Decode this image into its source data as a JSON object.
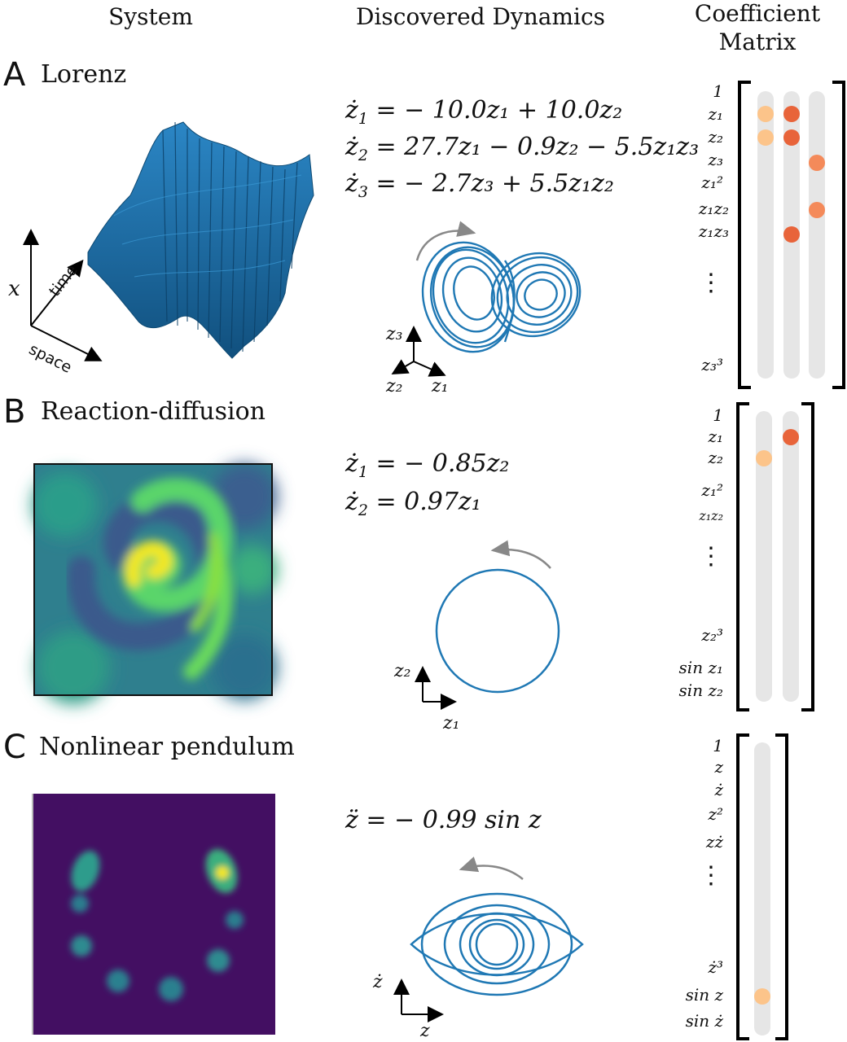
{
  "columns": {
    "system": "System",
    "dynamics": "Discovered Dynamics",
    "coef_line1": "Coefficient",
    "coef_line2": "Matrix"
  },
  "panels": {
    "A": {
      "letter": "A",
      "name": "Lorenz",
      "surface_axes": {
        "x": "x",
        "time": "time",
        "space": "space"
      },
      "equations": [
        {
          "lhs": "ż",
          "lsub": "1",
          "rhs": "= − 10.0z₁ + 10.0z₂"
        },
        {
          "lhs": "ż",
          "lsub": "2",
          "rhs": "= 27.7z₁ − 0.9z₂ − 5.5z₁z₃"
        },
        {
          "lhs": "ż",
          "lsub": "3",
          "rhs": "= − 2.7z₃ + 5.5z₁z₂"
        }
      ],
      "phase_axes": [
        "z₃",
        "z₂",
        "z₁"
      ],
      "library": [
        "1",
        "z₁",
        "z₂",
        "z₃",
        "z₁²",
        "z₁z₂",
        "z₁z₃",
        "⋮",
        "z₃³"
      ]
    },
    "B": {
      "letter": "B",
      "name": "Reaction-diffusion",
      "equations": [
        {
          "lhs": "ż",
          "lsub": "1",
          "rhs": "= − 0.85z₂"
        },
        {
          "lhs": "ż",
          "lsub": "2",
          "rhs": "= 0.97z₁"
        }
      ],
      "phase_axes": [
        "z₂",
        "z₁"
      ],
      "library": [
        "1",
        "z₁",
        "z₂",
        "z₁²",
        "z₁z₂",
        "⋮",
        "z₂³",
        "sin z₁",
        "sin z₂"
      ]
    },
    "C": {
      "letter": "C",
      "name": "Nonlinear pendulum",
      "equations": [
        {
          "lhs": "z̈",
          "lsub": "",
          "rhs": "= − 0.99 sin z"
        }
      ],
      "phase_axes": [
        "ż",
        "z"
      ],
      "library": [
        "1",
        "z",
        "ż",
        "z²",
        "zż",
        "⋮",
        "ż³",
        "sin z",
        "sin ż"
      ]
    }
  },
  "colors": {
    "flow_blue": "#1f78b4",
    "surface_blue": "#1f6fa8",
    "coef_strong": "#e8643a",
    "coef_weak": "#fcc48a",
    "coef_track": "#e6e6e6",
    "arrow_gray": "#888888"
  }
}
